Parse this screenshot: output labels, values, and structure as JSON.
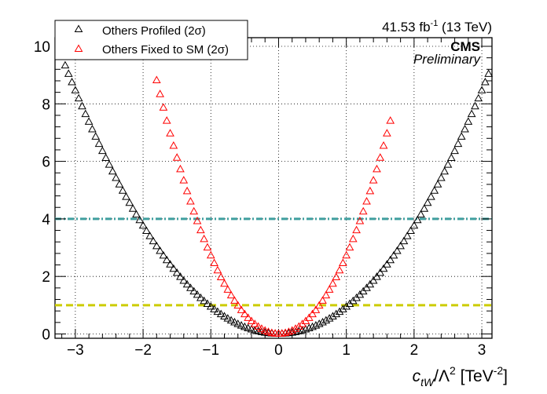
{
  "chart_data": {
    "type": "scatter",
    "lumi_text": "41.53 fb",
    "lumi_sup": "-1",
    "lumi_energy": " (13 TeV)",
    "experiment": "CMS",
    "status": "Preliminary",
    "xlabel": {
      "main": "c",
      "sub": "tW",
      "mid": "/Λ",
      "sup": "2",
      "units": " [TeV",
      "units_sup": "-2",
      "units_end": "]"
    },
    "ylabel": "",
    "xlim": [
      -3.3,
      3.15
    ],
    "ylim": [
      -0.15,
      10.3
    ],
    "x_ticks": [
      -3,
      -2,
      -1,
      0,
      1,
      2,
      3
    ],
    "x_tick_labels": [
      "−3",
      "−2",
      "−1",
      "0",
      "1",
      "2",
      "3"
    ],
    "y_ticks": [
      0,
      2,
      4,
      6,
      8,
      10
    ],
    "y_tick_labels": [
      "0",
      "2",
      "4",
      "6",
      "8",
      "10"
    ],
    "grid": true,
    "legend_position": "top-left",
    "legend": [
      {
        "label": "Others Profiled (2σ)",
        "color": "#000000",
        "marker": "open-triangle"
      },
      {
        "label": "Others Fixed to SM (2σ)",
        "color": "#ff0000",
        "marker": "open-triangle"
      }
    ],
    "reference_lines": [
      {
        "y": 4,
        "color": "#3f9f9f",
        "style": "dash-dot"
      },
      {
        "y": 1,
        "color": "#cccc00",
        "style": "dashed"
      }
    ],
    "series": [
      {
        "name": "Others Profiled (2σ)",
        "color": "#000000",
        "marker": "open-triangle",
        "x_min": -3.25,
        "x_max": 3.1,
        "x_step": 0.05,
        "coeff": 0.94
      },
      {
        "name": "Others Fixed to SM (2σ)",
        "color": "#ff0000",
        "marker": "open-triangle",
        "x_min": -1.8,
        "x_max": 1.65,
        "x_step": 0.05,
        "coeff": 2.72
      }
    ]
  }
}
